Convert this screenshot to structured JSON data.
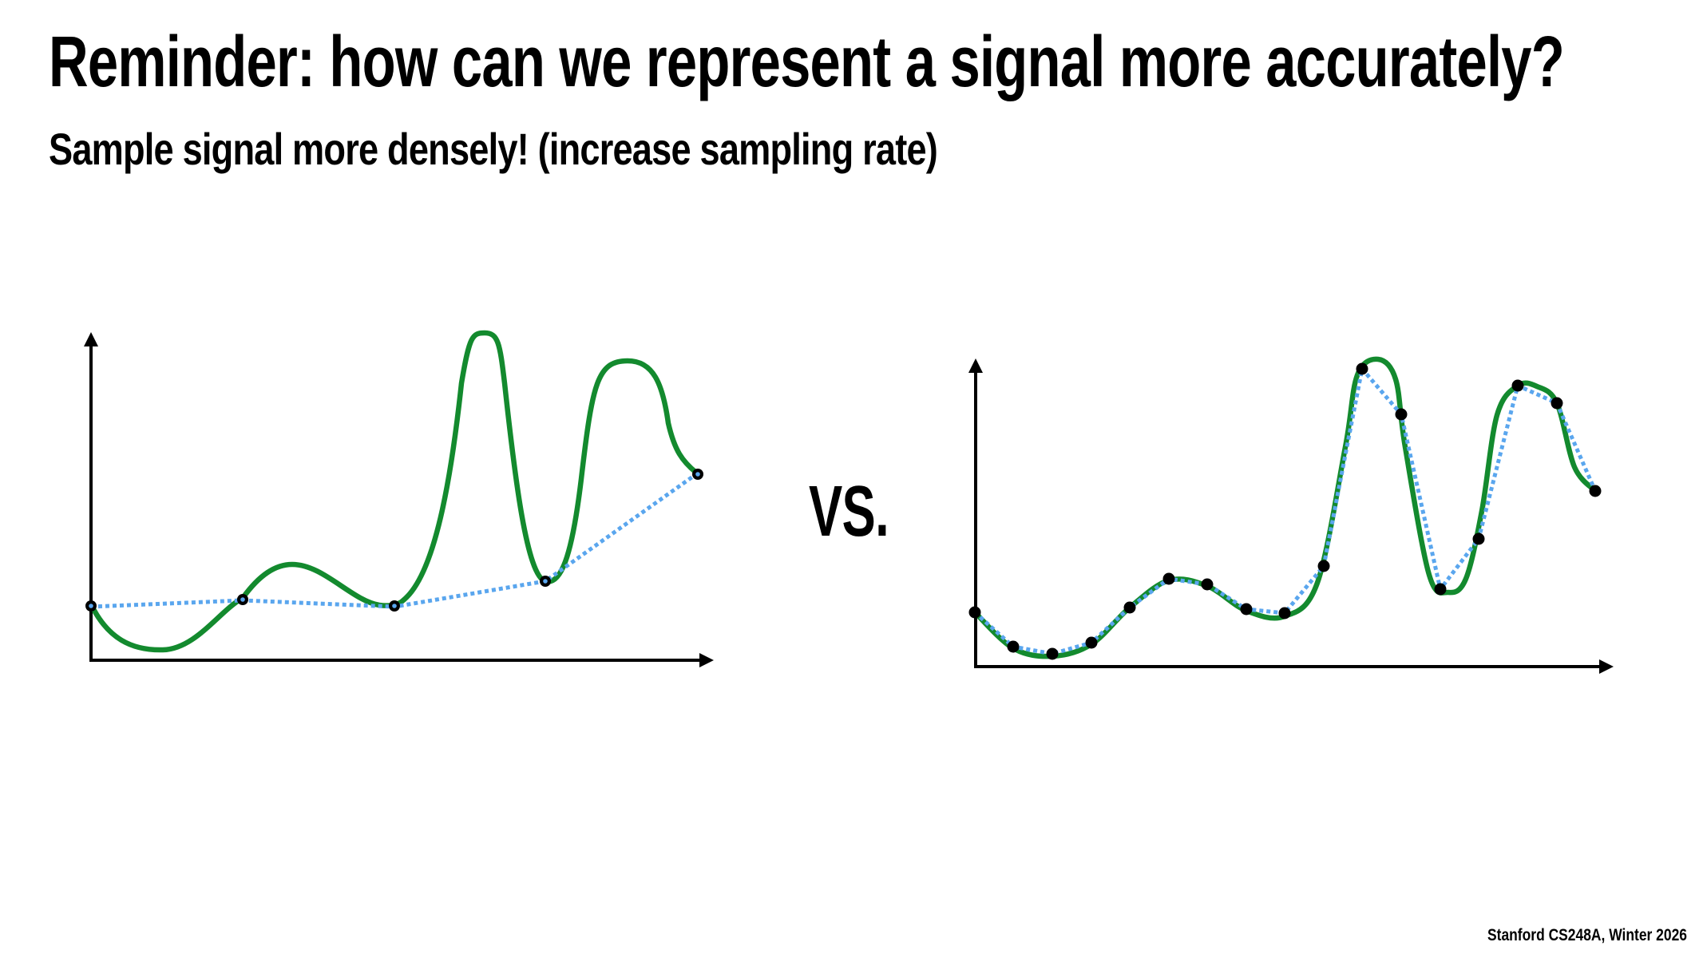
{
  "slide": {
    "title": "Reminder: how can we represent a signal more accurately?",
    "subtitle": "Sample signal more densely! (increase sampling rate)",
    "vs_label": "VS.",
    "footer": "Stanford CS248A, Winter 2026"
  },
  "colors": {
    "signal": "#138a2e",
    "reconstruction": "#5aa6ee",
    "sample": "#000000",
    "axis": "#000000"
  }
}
